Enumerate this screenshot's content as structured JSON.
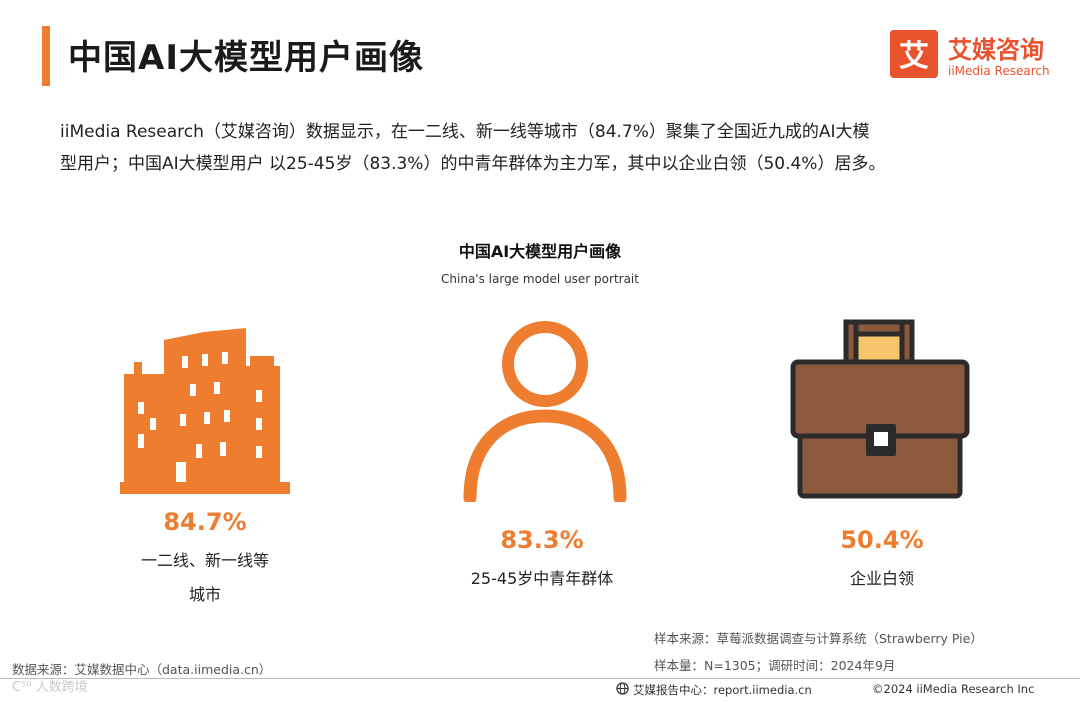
{
  "header": {
    "title": "中国AI大模型用户画像",
    "logo_name": "艾媒咨询",
    "logo_sub": "iiMedia Research",
    "logo_glyph": "艾"
  },
  "intro": {
    "line1": "iiMedia Research（艾媒咨询）数据显示，在一二线、新一线等城市（84.7%）聚集了全国近九成的AI大模",
    "line2": "型用户；中国AI大模型用户 以25-45岁（83.3%）的中青年群体为主力军，其中以企业白领（50.4%）居多。"
  },
  "chart_title": "中国AI大模型用户画像",
  "chart_subtitle": "China's large model user portrait",
  "stats": [
    {
      "icon": "city-buildings-icon",
      "value": "84.7%",
      "label_line1": "一二线、新一线等",
      "label_line2": "城市"
    },
    {
      "icon": "person-icon",
      "value": "83.3%",
      "label_line1": "25-45岁中青年群体",
      "label_line2": ""
    },
    {
      "icon": "briefcase-icon",
      "value": "50.4%",
      "label_line1": "企业白领",
      "label_line2": ""
    }
  ],
  "source": {
    "sample_source": "样本来源：草莓派数据调查与计算系统（Strawberry Pie）",
    "sample_size": "样本量：N=1305；调研时间：2024年9月",
    "data_source": "数据来源：艾媒数据中心（data.iimedia.cn）"
  },
  "watermark": "C⁵⁰ 人数跨境",
  "footer": {
    "report_center": "艾媒报告中心：report.iimedia.cn",
    "copyright": "©2024  iiMedia Research  Inc"
  },
  "colors": {
    "accent": "#ef7d2f",
    "brand": "#e8522d",
    "briefcase": "#8b5a3c",
    "briefcase_handle": "#f6c46b",
    "outline": "#2b2b2b"
  }
}
